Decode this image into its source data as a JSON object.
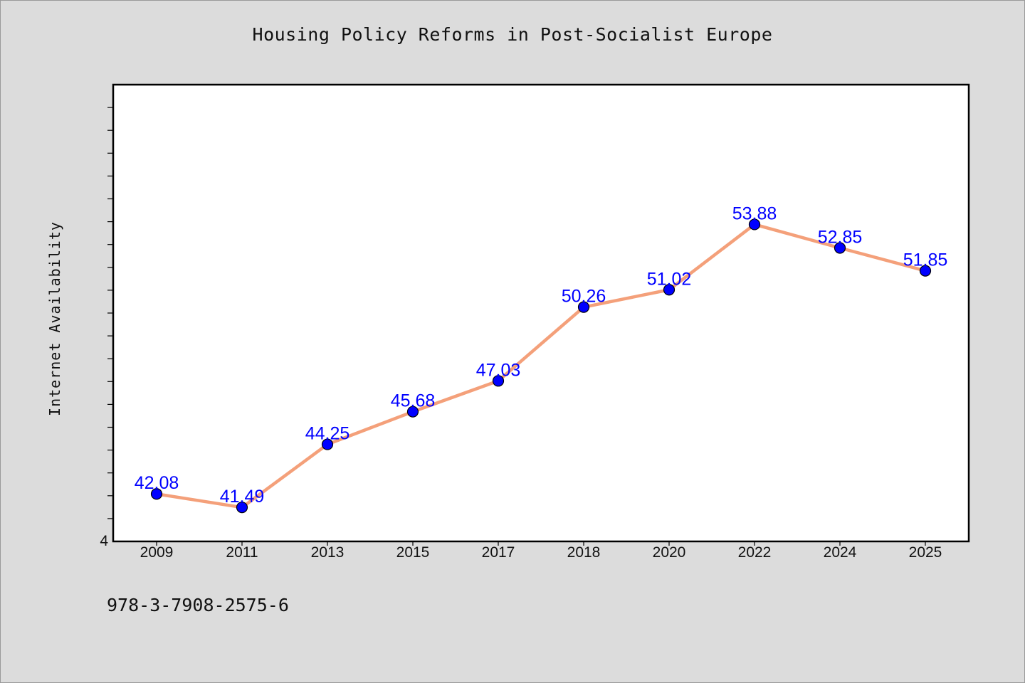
{
  "colors": {
    "background": "#dcdcdc",
    "plot_background": "#ffffff",
    "line": "#f4a07a",
    "marker": "#0000ff",
    "label": "#0000ff"
  },
  "footnote": "978-3-7908-2575-6",
  "chart_data": {
    "type": "line",
    "title": "Housing Policy Reforms in Post-Socialist Europe",
    "xlabel": "",
    "ylabel": "Internet Availability",
    "categories": [
      "2009",
      "2011",
      "2013",
      "2015",
      "2017",
      "2018",
      "2020",
      "2022",
      "2024",
      "2025"
    ],
    "series": [
      {
        "values": [
          42.08,
          41.49,
          44.25,
          45.68,
          47.03,
          50.26,
          51.02,
          53.88,
          52.85,
          51.85
        ],
        "labels": [
          "42.08",
          "41.49",
          "44.25",
          "45.68",
          "47.03",
          "50.26",
          "51.02",
          "53.88",
          "52.85",
          "51.85"
        ]
      }
    ],
    "ylim": [
      40,
      60
    ],
    "y_tick_labels": [
      "4"
    ],
    "y_minor_tick_step": 1,
    "grid": false,
    "legend": "none",
    "markers": true
  }
}
